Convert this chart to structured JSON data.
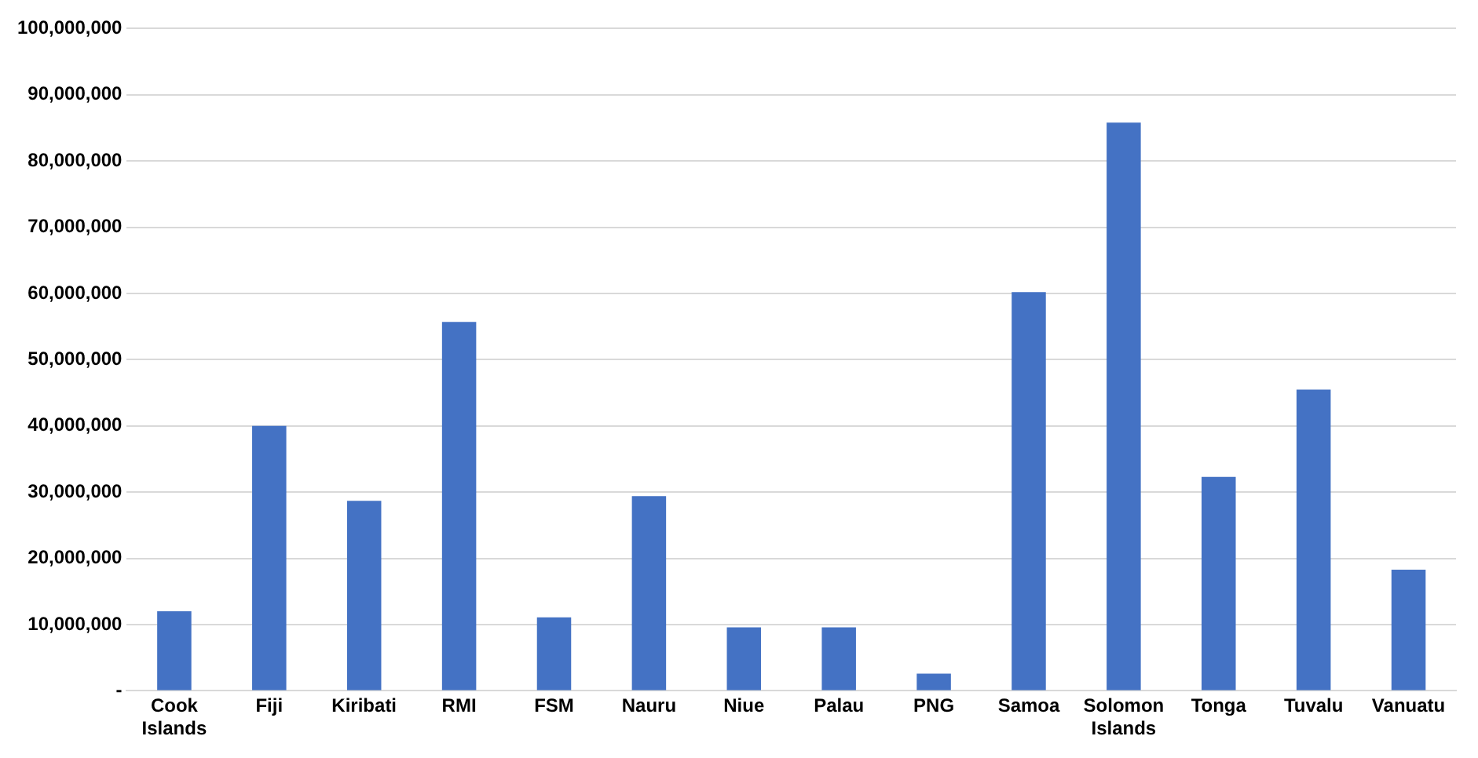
{
  "chart_data": {
    "type": "bar",
    "categories": [
      "Cook Islands",
      "Fiji",
      "Kiribati",
      "RMI",
      "FSM",
      "Nauru",
      "Niue",
      "Palau",
      "PNG",
      "Samoa",
      "Solomon Islands",
      "Tonga",
      "Tuvalu",
      "Vanuatu"
    ],
    "values": [
      12000000,
      40000000,
      28700000,
      55700000,
      11100000,
      29400000,
      9600000,
      9600000,
      2600000,
      60200000,
      85800000,
      32300000,
      45500000,
      18300000
    ],
    "color": "#4472c4",
    "ylim": [
      0,
      100000000
    ],
    "yticks": [
      {
        "value": 0,
        "label": "-"
      },
      {
        "value": 10000000,
        "label": "10,000,000"
      },
      {
        "value": 20000000,
        "label": "20,000,000"
      },
      {
        "value": 30000000,
        "label": "30,000,000"
      },
      {
        "value": 40000000,
        "label": "40,000,000"
      },
      {
        "value": 50000000,
        "label": "50,000,000"
      },
      {
        "value": 60000000,
        "label": "60,000,000"
      },
      {
        "value": 70000000,
        "label": "70,000,000"
      },
      {
        "value": 80000000,
        "label": "80,000,000"
      },
      {
        "value": 90000000,
        "label": "90,000,000"
      },
      {
        "value": 100000000,
        "label": "100,000,000"
      }
    ],
    "grid": "y",
    "legend": false
  }
}
